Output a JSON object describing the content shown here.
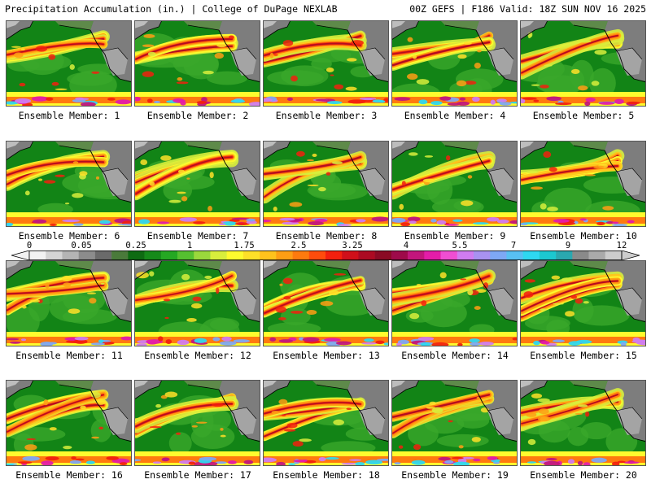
{
  "header": {
    "title": "Precipitation Accumulation (in.) | College of DuPage NEXLAB",
    "run_info": "00Z GEFS | F186 Valid: 18Z SUN NOV 16 2025"
  },
  "colorbar": {
    "tick_labels": [
      "0",
      "0.05",
      "0.25",
      "1",
      "1.75",
      "2.5",
      "3.25",
      "4",
      "5.5",
      "7",
      "9",
      "12"
    ],
    "colors": [
      "#f2f2f2",
      "#d4d4d4",
      "#b4b4b4",
      "#8c8c8c",
      "#6a6a6a",
      "#4a7a3a",
      "#0e6b12",
      "#168a1a",
      "#25a823",
      "#55c030",
      "#9ad83c",
      "#d8ee3c",
      "#fffb2e",
      "#ffe028",
      "#ffc21c",
      "#ff9e14",
      "#ff7a0e",
      "#ff4c0c",
      "#f2200e",
      "#d0101a",
      "#ac0a22",
      "#8a0a24",
      "#9e0a4a",
      "#c2167c",
      "#e41ca8",
      "#f04ed2",
      "#d07cf0",
      "#a892f0",
      "#7ea8f4",
      "#58c0f2",
      "#2ed8f0",
      "#1cc8d0",
      "#2aa8b0",
      "#8a8a8a",
      "#aaaaaa",
      "#cccccc"
    ]
  },
  "members": [
    {
      "label": "Ensemble Member: 1"
    },
    {
      "label": "Ensemble Member: 2"
    },
    {
      "label": "Ensemble Member: 3"
    },
    {
      "label": "Ensemble Member: 4"
    },
    {
      "label": "Ensemble Member: 5"
    },
    {
      "label": "Ensemble Member: 6"
    },
    {
      "label": "Ensemble Member: 7"
    },
    {
      "label": "Ensemble Member: 8"
    },
    {
      "label": "Ensemble Member: 9"
    },
    {
      "label": "Ensemble Member: 10"
    },
    {
      "label": "Ensemble Member: 11"
    },
    {
      "label": "Ensemble Member: 12"
    },
    {
      "label": "Ensemble Member: 13"
    },
    {
      "label": "Ensemble Member: 14"
    },
    {
      "label": "Ensemble Member: 15"
    },
    {
      "label": "Ensemble Member: 16"
    },
    {
      "label": "Ensemble Member: 17"
    },
    {
      "label": "Ensemble Member: 18"
    },
    {
      "label": "Ensemble Member: 19"
    },
    {
      "label": "Ensemble Member: 20"
    }
  ]
}
